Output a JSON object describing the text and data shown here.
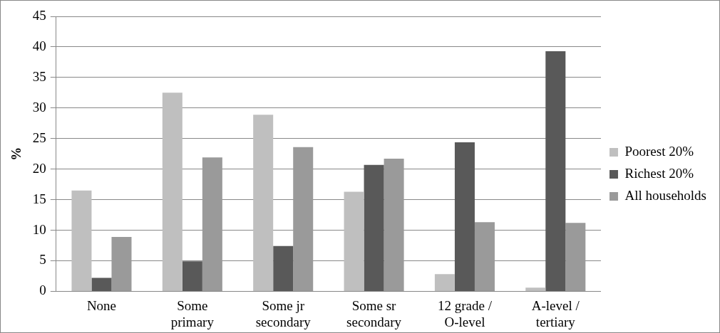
{
  "chart_data": {
    "type": "bar",
    "ylabel": "%",
    "categories": [
      "None",
      "Some primary",
      "Some jr secondary",
      "Some sr secondary",
      "12 grade / O-level",
      "A-level / tertiary"
    ],
    "series": [
      {
        "name": "Poorest 20%",
        "color": "#bfbfbf",
        "values": [
          16.5,
          32.5,
          28.9,
          16.3,
          2.8,
          0.6
        ]
      },
      {
        "name": "Richest 20%",
        "color": "#595959",
        "values": [
          2.2,
          4.9,
          7.4,
          20.7,
          24.4,
          39.3
        ]
      },
      {
        "name": "All households",
        "color": "#9a9a9a",
        "values": [
          8.9,
          21.9,
          23.6,
          21.7,
          11.3,
          11.2
        ]
      }
    ],
    "ylim": [
      0,
      45
    ],
    "yticks": [
      0,
      5,
      10,
      15,
      20,
      25,
      30,
      35,
      40,
      45
    ],
    "grid": "y",
    "legend": "right"
  }
}
